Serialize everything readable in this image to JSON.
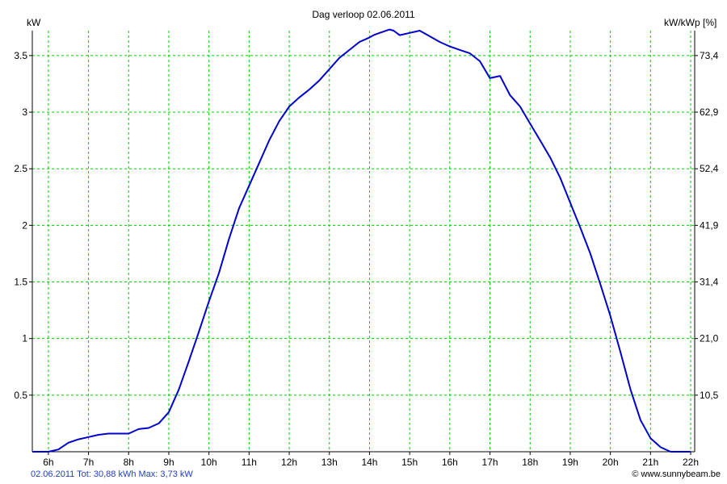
{
  "footer": {
    "summary": "02.06.2011 Tot: 30,88 kWh Max: 3,73 kW",
    "credit": "© www.sunnybeam.be"
  },
  "chart_data": {
    "type": "line",
    "title": "Dag  verloop 02.06.2011",
    "ylabel": "kW",
    "y2label": "kW/kWp [%]",
    "xlabel": "",
    "x_tick_labels": [
      "6h",
      "7h",
      "8h",
      "9h",
      "10h",
      "11h",
      "12h",
      "13h",
      "14h",
      "15h",
      "16h",
      "17h",
      "18h",
      "19h",
      "20h",
      "21h",
      "22h"
    ],
    "x_ticks": [
      6,
      7,
      8,
      9,
      10,
      11,
      12,
      13,
      14,
      15,
      16,
      17,
      18,
      19,
      20,
      21,
      22
    ],
    "y_tick_labels": [
      "0.5",
      "1",
      "1.5",
      "2",
      "2.5",
      "3",
      "3.5"
    ],
    "y_ticks": [
      0.5,
      1,
      1.5,
      2,
      2.5,
      3,
      3.5
    ],
    "y2_tick_labels": [
      "10,5",
      "21,0",
      "31,4",
      "41,9",
      "52,4",
      "62,9",
      "73,4"
    ],
    "xlim": [
      5.6,
      22.1
    ],
    "ylim": [
      0,
      3.72
    ],
    "grid": true,
    "colors": {
      "line": "#0000cc",
      "grid": "#00cc00",
      "axis": "#000000"
    },
    "series": [
      {
        "x": [
          5.6,
          6.0,
          6.25,
          6.5,
          6.75,
          7.0,
          7.25,
          7.5,
          7.75,
          8.0,
          8.25,
          8.5,
          8.75,
          9.0,
          9.25,
          9.5,
          9.75,
          10.0,
          10.25,
          10.5,
          10.75,
          11.0,
          11.25,
          11.5,
          11.75,
          12.0,
          12.25,
          12.5,
          12.75,
          13.0,
          13.25,
          13.5,
          13.75,
          14.0,
          14.1,
          14.25,
          14.5,
          14.6,
          14.75,
          15.0,
          15.25,
          15.5,
          15.75,
          16.0,
          16.25,
          16.5,
          16.75,
          17.0,
          17.25,
          17.5,
          17.75,
          18.0,
          18.25,
          18.5,
          18.75,
          19.0,
          19.25,
          19.5,
          19.75,
          20.0,
          20.25,
          20.5,
          20.75,
          21.0,
          21.25,
          21.5,
          21.75,
          22.0
        ],
        "values": [
          0,
          0,
          0.02,
          0.08,
          0.11,
          0.13,
          0.15,
          0.16,
          0.16,
          0.16,
          0.2,
          0.21,
          0.25,
          0.35,
          0.55,
          0.8,
          1.06,
          1.33,
          1.58,
          1.88,
          2.15,
          2.35,
          2.55,
          2.75,
          2.92,
          3.05,
          3.13,
          3.2,
          3.28,
          3.38,
          3.48,
          3.55,
          3.62,
          3.66,
          3.68,
          3.7,
          3.73,
          3.72,
          3.68,
          3.7,
          3.72,
          3.67,
          3.62,
          3.58,
          3.55,
          3.52,
          3.45,
          3.3,
          3.32,
          3.15,
          3.05,
          2.9,
          2.75,
          2.6,
          2.42,
          2.2,
          1.98,
          1.75,
          1.48,
          1.2,
          0.88,
          0.55,
          0.28,
          0.12,
          0.04,
          0,
          0,
          0
        ]
      }
    ]
  }
}
